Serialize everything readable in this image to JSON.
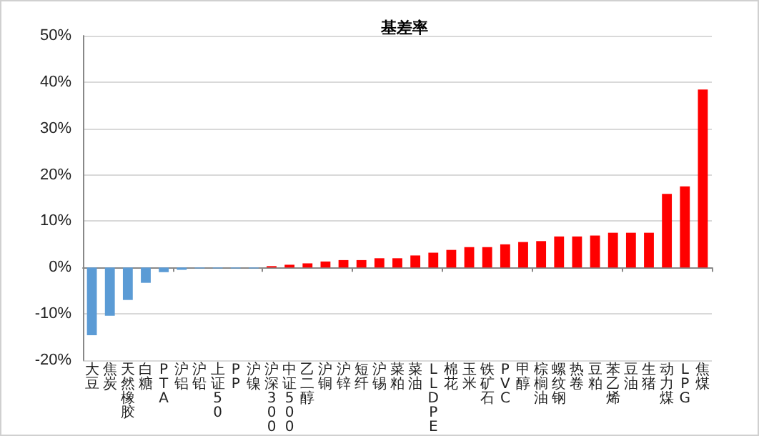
{
  "chart_data": {
    "type": "bar",
    "title": "基差率",
    "categories": [
      "大豆",
      "焦炭",
      "天然橡胶",
      "白糖",
      "PTA",
      "沪铝",
      "沪铅",
      "上证50",
      "PP",
      "沪镍",
      "沪深300",
      "中证500",
      "乙二醇",
      "沪铜",
      "沪锌",
      "短纤",
      "沪锡",
      "菜粕",
      "菜油",
      "LLDPE",
      "棉花",
      "玉米",
      "铁矿石",
      "PVC",
      "甲醇",
      "棕榈油",
      "螺纹钢",
      "热卷",
      "豆粕",
      "苯乙烯",
      "豆油",
      "生猪",
      "动力煤",
      "LPG",
      "焦煤"
    ],
    "values": [
      -14.6,
      -10.4,
      -7.0,
      -3.3,
      -1.0,
      -0.5,
      -0.2,
      -0.2,
      -0.2,
      -0.2,
      0.3,
      0.6,
      0.9,
      1.3,
      1.6,
      1.6,
      2.0,
      2.0,
      2.6,
      3.2,
      3.8,
      4.4,
      4.4,
      5.0,
      5.5,
      5.7,
      6.7,
      6.7,
      6.9,
      7.5,
      7.5,
      7.5,
      15.9,
      17.5,
      38.4
    ],
    "colors": [
      "#5b9bd5",
      "#5b9bd5",
      "#5b9bd5",
      "#5b9bd5",
      "#5b9bd5",
      "#5b9bd5",
      "#5b9bd5",
      "#5b9bd5",
      "#5b9bd5",
      "#5b9bd5",
      "#ff0000",
      "#ff0000",
      "#ff0000",
      "#ff0000",
      "#ff0000",
      "#ff0000",
      "#ff0000",
      "#ff0000",
      "#ff0000",
      "#ff0000",
      "#ff0000",
      "#ff0000",
      "#ff0000",
      "#ff0000",
      "#ff0000",
      "#ff0000",
      "#ff0000",
      "#ff0000",
      "#ff0000",
      "#ff0000",
      "#ff0000",
      "#ff0000",
      "#ff0000",
      "#ff0000",
      "#ff0000"
    ],
    "ylim": [
      -20,
      50
    ],
    "yticks": [
      {
        "value": -20,
        "label": "-20%"
      },
      {
        "value": -10,
        "label": "-10%"
      },
      {
        "value": 0,
        "label": "0%"
      },
      {
        "value": 10,
        "label": "10%"
      },
      {
        "value": 20,
        "label": "20%"
      },
      {
        "value": 30,
        "label": "30%"
      },
      {
        "value": 40,
        "label": "40%"
      },
      {
        "value": 50,
        "label": "50%"
      }
    ],
    "grid": "y"
  }
}
